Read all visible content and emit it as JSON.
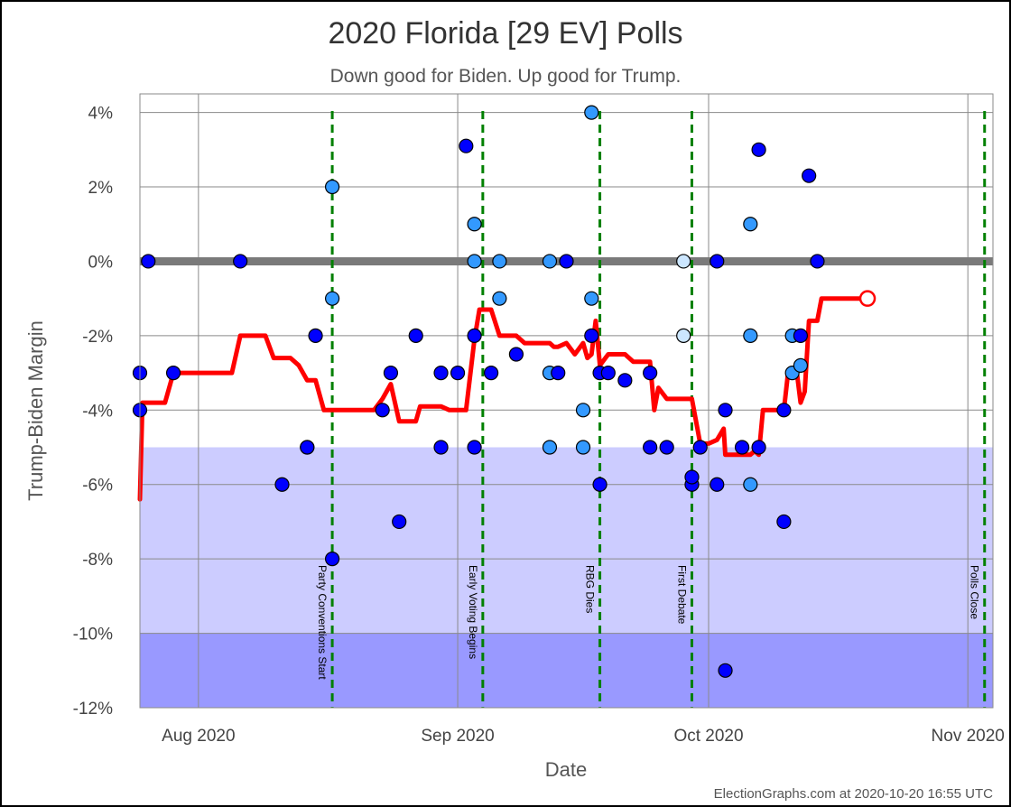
{
  "chart_data": {
    "type": "scatter",
    "title": "2020 Florida [29 EV] Polls",
    "subtitle": "Down good for Biden. Up good for Trump.",
    "xlabel": "Date",
    "ylabel": "Trump-Biden Margin",
    "credit": "ElectionGraphs.com at 2020-10-20 16:55 UTC",
    "xlim": [
      "2020-07-25",
      "2020-11-04"
    ],
    "ylim": [
      -12,
      4.5
    ],
    "x_ticks": [
      {
        "date": "2020-08-01",
        "label": "Aug 2020"
      },
      {
        "date": "2020-09-01",
        "label": "Sep 2020"
      },
      {
        "date": "2020-10-01",
        "label": "Oct 2020"
      },
      {
        "date": "2020-11-01",
        "label": "Nov 2020"
      }
    ],
    "y_ticks": [
      {
        "value": 4,
        "label": "4%"
      },
      {
        "value": 2,
        "label": "2%"
      },
      {
        "value": 0,
        "label": "0%"
      },
      {
        "value": -2,
        "label": "-2%"
      },
      {
        "value": -4,
        "label": "-4%"
      },
      {
        "value": -6,
        "label": "-6%"
      },
      {
        "value": -8,
        "label": "-8%"
      },
      {
        "value": -10,
        "label": "-10%"
      },
      {
        "value": -12,
        "label": "-12%"
      }
    ],
    "bands": [
      {
        "from": -10,
        "to": -5,
        "color": "#ccccff"
      },
      {
        "from": -12,
        "to": -10,
        "color": "#9999ff"
      }
    ],
    "zero_line_color": "#7a7a7a",
    "grid": true,
    "events": [
      {
        "date": "2020-08-17",
        "label": "Party Conventions Start"
      },
      {
        "date": "2020-09-04",
        "label": "Early Voting Begins"
      },
      {
        "date": "2020-09-18",
        "label": "RBG Dies"
      },
      {
        "date": "2020-09-29",
        "label": "First Debate"
      },
      {
        "date": "2020-11-03",
        "label": "Polls Close"
      }
    ],
    "event_color": "#008000",
    "poll_colors": {
      "dark": "#0000ff",
      "medium": "#3399ff",
      "light": "#cce6ff"
    },
    "polls": [
      {
        "date": "2020-07-25",
        "margin": -3,
        "shade": "dark"
      },
      {
        "date": "2020-07-25",
        "margin": -4,
        "shade": "dark"
      },
      {
        "date": "2020-07-26",
        "margin": 0,
        "shade": "dark"
      },
      {
        "date": "2020-07-29",
        "margin": -3,
        "shade": "dark"
      },
      {
        "date": "2020-08-06",
        "margin": 0,
        "shade": "dark"
      },
      {
        "date": "2020-08-11",
        "margin": -6,
        "shade": "dark"
      },
      {
        "date": "2020-08-14",
        "margin": -5,
        "shade": "dark"
      },
      {
        "date": "2020-08-14",
        "margin": -5,
        "shade": "dark"
      },
      {
        "date": "2020-08-15",
        "margin": -2,
        "shade": "dark"
      },
      {
        "date": "2020-08-17",
        "margin": 2,
        "shade": "medium"
      },
      {
        "date": "2020-08-17",
        "margin": -1,
        "shade": "medium"
      },
      {
        "date": "2020-08-17",
        "margin": -8,
        "shade": "dark"
      },
      {
        "date": "2020-08-23",
        "margin": -4,
        "shade": "dark"
      },
      {
        "date": "2020-08-24",
        "margin": -3,
        "shade": "dark"
      },
      {
        "date": "2020-08-25",
        "margin": -7,
        "shade": "dark"
      },
      {
        "date": "2020-08-27",
        "margin": -2,
        "shade": "dark"
      },
      {
        "date": "2020-08-30",
        "margin": -3,
        "shade": "dark"
      },
      {
        "date": "2020-08-30",
        "margin": -5,
        "shade": "dark"
      },
      {
        "date": "2020-09-01",
        "margin": -3,
        "shade": "dark"
      },
      {
        "date": "2020-09-02",
        "margin": 3.1,
        "shade": "dark"
      },
      {
        "date": "2020-09-03",
        "margin": -2,
        "shade": "dark"
      },
      {
        "date": "2020-09-03",
        "margin": -5,
        "shade": "dark"
      },
      {
        "date": "2020-09-03",
        "margin": 1,
        "shade": "medium"
      },
      {
        "date": "2020-09-03",
        "margin": 0,
        "shade": "medium"
      },
      {
        "date": "2020-09-05",
        "margin": -3,
        "shade": "dark"
      },
      {
        "date": "2020-09-06",
        "margin": 0,
        "shade": "medium"
      },
      {
        "date": "2020-09-06",
        "margin": -1,
        "shade": "medium"
      },
      {
        "date": "2020-09-08",
        "margin": -2.5,
        "shade": "dark"
      },
      {
        "date": "2020-09-12",
        "margin": -3,
        "shade": "medium"
      },
      {
        "date": "2020-09-12",
        "margin": -5,
        "shade": "medium"
      },
      {
        "date": "2020-09-12",
        "margin": 0,
        "shade": "medium"
      },
      {
        "date": "2020-09-13",
        "margin": -3,
        "shade": "dark"
      },
      {
        "date": "2020-09-14",
        "margin": 0,
        "shade": "dark"
      },
      {
        "date": "2020-09-16",
        "margin": -4,
        "shade": "medium"
      },
      {
        "date": "2020-09-16",
        "margin": -5,
        "shade": "medium"
      },
      {
        "date": "2020-09-17",
        "margin": -2,
        "shade": "dark"
      },
      {
        "date": "2020-09-17",
        "margin": 4,
        "shade": "medium"
      },
      {
        "date": "2020-09-17",
        "margin": -1,
        "shade": "medium"
      },
      {
        "date": "2020-09-18",
        "margin": -6,
        "shade": "dark"
      },
      {
        "date": "2020-09-18",
        "margin": -3,
        "shade": "dark"
      },
      {
        "date": "2020-09-19",
        "margin": -3,
        "shade": "dark"
      },
      {
        "date": "2020-09-21",
        "margin": -3.2,
        "shade": "dark"
      },
      {
        "date": "2020-09-24",
        "margin": -5,
        "shade": "dark"
      },
      {
        "date": "2020-09-24",
        "margin": -3,
        "shade": "dark"
      },
      {
        "date": "2020-09-26",
        "margin": -5,
        "shade": "dark"
      },
      {
        "date": "2020-09-28",
        "margin": 0,
        "shade": "light"
      },
      {
        "date": "2020-09-28",
        "margin": -2,
        "shade": "light"
      },
      {
        "date": "2020-09-29",
        "margin": -6,
        "shade": "dark"
      },
      {
        "date": "2020-09-29",
        "margin": -5.8,
        "shade": "dark"
      },
      {
        "date": "2020-09-30",
        "margin": -5,
        "shade": "dark"
      },
      {
        "date": "2020-10-02",
        "margin": -6,
        "shade": "dark"
      },
      {
        "date": "2020-10-02",
        "margin": 0,
        "shade": "dark"
      },
      {
        "date": "2020-10-03",
        "margin": -4,
        "shade": "dark"
      },
      {
        "date": "2020-10-03",
        "margin": -11,
        "shade": "dark"
      },
      {
        "date": "2020-10-05",
        "margin": -5,
        "shade": "dark"
      },
      {
        "date": "2020-10-06",
        "margin": 1,
        "shade": "medium"
      },
      {
        "date": "2020-10-06",
        "margin": -2,
        "shade": "medium"
      },
      {
        "date": "2020-10-06",
        "margin": -6,
        "shade": "medium"
      },
      {
        "date": "2020-10-07",
        "margin": 3,
        "shade": "dark"
      },
      {
        "date": "2020-10-07",
        "margin": -5,
        "shade": "dark"
      },
      {
        "date": "2020-10-10",
        "margin": -7,
        "shade": "dark"
      },
      {
        "date": "2020-10-10",
        "margin": -4,
        "shade": "dark"
      },
      {
        "date": "2020-10-11",
        "margin": -3,
        "shade": "medium"
      },
      {
        "date": "2020-10-11",
        "margin": -2,
        "shade": "medium"
      },
      {
        "date": "2020-10-12",
        "margin": -2.8,
        "shade": "medium"
      },
      {
        "date": "2020-10-12",
        "margin": -2,
        "shade": "dark"
      },
      {
        "date": "2020-10-13",
        "margin": 2.3,
        "shade": "dark"
      },
      {
        "date": "2020-10-14",
        "margin": 0,
        "shade": "dark"
      }
    ],
    "average": {
      "color": "#ff0000",
      "points": [
        [
          "2020-07-25",
          -6.4
        ],
        [
          "2020-07-25.3",
          -3.8
        ],
        [
          "2020-07-28",
          -3.8
        ],
        [
          "2020-07-29",
          -3
        ],
        [
          "2020-08-05",
          -3
        ],
        [
          "2020-08-06",
          -2
        ],
        [
          "2020-08-09",
          -2
        ],
        [
          "2020-08-10",
          -2.6
        ],
        [
          "2020-08-12",
          -2.6
        ],
        [
          "2020-08-13",
          -2.8
        ],
        [
          "2020-08-14",
          -3.2
        ],
        [
          "2020-08-15",
          -3.2
        ],
        [
          "2020-08-16",
          -4
        ],
        [
          "2020-08-17",
          -4
        ],
        [
          "2020-08-19",
          -4
        ],
        [
          "2020-08-22",
          -4
        ],
        [
          "2020-08-23",
          -3.7
        ],
        [
          "2020-08-24",
          -3.3
        ],
        [
          "2020-08-25",
          -4.3
        ],
        [
          "2020-08-27",
          -4.3
        ],
        [
          "2020-08-27.5",
          -3.9
        ],
        [
          "2020-08-30",
          -3.9
        ],
        [
          "2020-08-31",
          -4
        ],
        [
          "2020-09-02",
          -4
        ],
        [
          "2020-09-03",
          -2.1
        ],
        [
          "2020-09-03.6",
          -1.3
        ],
        [
          "2020-09-05",
          -1.3
        ],
        [
          "2020-09-06",
          -2
        ],
        [
          "2020-09-08",
          -2
        ],
        [
          "2020-09-09",
          -2.2
        ],
        [
          "2020-09-12",
          -2.2
        ],
        [
          "2020-09-12.5",
          -2.3
        ],
        [
          "2020-09-13",
          -2.3
        ],
        [
          "2020-09-14",
          -2.2
        ],
        [
          "2020-09-15",
          -2.5
        ],
        [
          "2020-09-16",
          -2.2
        ],
        [
          "2020-09-16.5",
          -2.6
        ],
        [
          "2020-09-17",
          -2.5
        ],
        [
          "2020-09-17.5",
          -1.6
        ],
        [
          "2020-09-18",
          -2.8
        ],
        [
          "2020-09-19",
          -2.5
        ],
        [
          "2020-09-21",
          -2.5
        ],
        [
          "2020-09-22",
          -2.7
        ],
        [
          "2020-09-24",
          -2.7
        ],
        [
          "2020-09-24.5",
          -4
        ],
        [
          "2020-09-25",
          -3.4
        ],
        [
          "2020-09-26",
          -3.7
        ],
        [
          "2020-09-29",
          -3.7
        ],
        [
          "2020-09-30",
          -4.9
        ],
        [
          "2020-10-01",
          -4.9
        ],
        [
          "2020-10-02",
          -4.8
        ],
        [
          "2020-10-02.8",
          -4.5
        ],
        [
          "2020-10-03",
          -5.2
        ],
        [
          "2020-10-06",
          -5.2
        ],
        [
          "2020-10-06.5",
          -5.1
        ],
        [
          "2020-10-07",
          -5.2
        ],
        [
          "2020-10-07.5",
          -4
        ],
        [
          "2020-10-10",
          -4
        ],
        [
          "2020-10-10.5",
          -3
        ],
        [
          "2020-10-11",
          -3.1
        ],
        [
          "2020-10-11.5",
          -2.9
        ],
        [
          "2020-10-12",
          -3.8
        ],
        [
          "2020-10-12.5",
          -3.5
        ],
        [
          "2020-10-13",
          -1.6
        ],
        [
          "2020-10-14",
          -1.6
        ],
        [
          "2020-10-14.5",
          -1
        ],
        [
          "2020-10-20",
          -1
        ]
      ],
      "end_marker": [
        "2020-10-20",
        -1
      ]
    }
  }
}
